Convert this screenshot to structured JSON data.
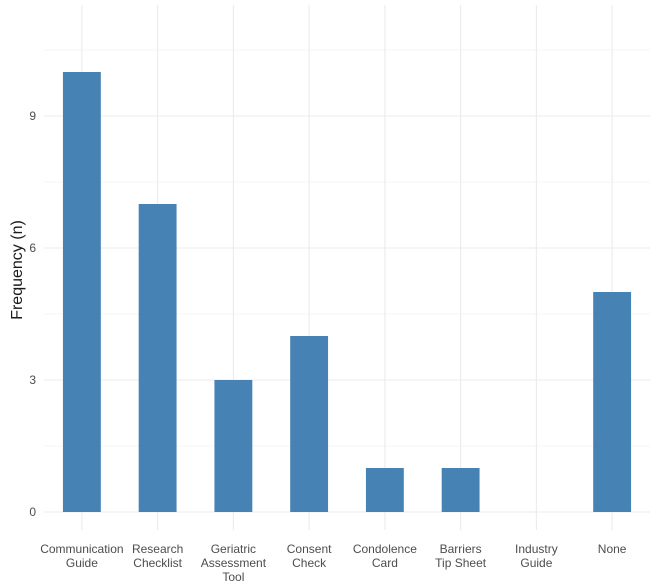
{
  "chart_data": {
    "type": "bar",
    "title": "",
    "xlabel": "",
    "ylabel": "Frequency (n)",
    "categories": [
      [
        "Communication",
        "Guide"
      ],
      [
        "Research",
        "Checklist"
      ],
      [
        "Geriatric",
        "Assessment",
        "Tool"
      ],
      [
        "Consent",
        "Check"
      ],
      [
        "Condolence",
        "Card"
      ],
      [
        "Barriers",
        "Tip Sheet"
      ],
      [
        "Industry",
        "Guide"
      ],
      [
        "None"
      ]
    ],
    "values": [
      10,
      7,
      3,
      4,
      1,
      1,
      0,
      5
    ],
    "ylim": [
      0,
      11
    ],
    "yticks": [
      0,
      3,
      6,
      9
    ],
    "bar_color": "#4682B4",
    "grid": true
  }
}
